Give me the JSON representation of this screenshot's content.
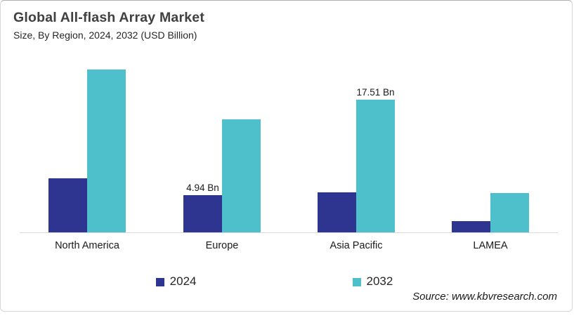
{
  "source": "Source: www.kbvresearch.com",
  "chart_data": {
    "type": "bar",
    "title": "Global All-flash Array Market",
    "subtitle": "Size, By Region, 2024, 2032 (USD Billion)",
    "unit": "USD Billion",
    "categories": [
      "North America",
      "Europe",
      "Asia Pacific",
      "LAMEA"
    ],
    "series": [
      {
        "name": "2024",
        "color": "#2e3591",
        "values": [
          7.1,
          4.94,
          5.3,
          1.5
        ]
      },
      {
        "name": "2032",
        "color": "#4ec0cb",
        "values": [
          21.5,
          14.9,
          17.51,
          5.2
        ]
      }
    ],
    "data_labels": [
      {
        "series": "2024",
        "category": "Europe",
        "text": "4.94 Bn"
      },
      {
        "series": "2032",
        "category": "Asia Pacific",
        "text": "17.51 Bn"
      }
    ],
    "xlabel": "",
    "ylabel": "",
    "ylim": [
      0,
      22
    ],
    "grid": false,
    "legend_position": "bottom"
  }
}
